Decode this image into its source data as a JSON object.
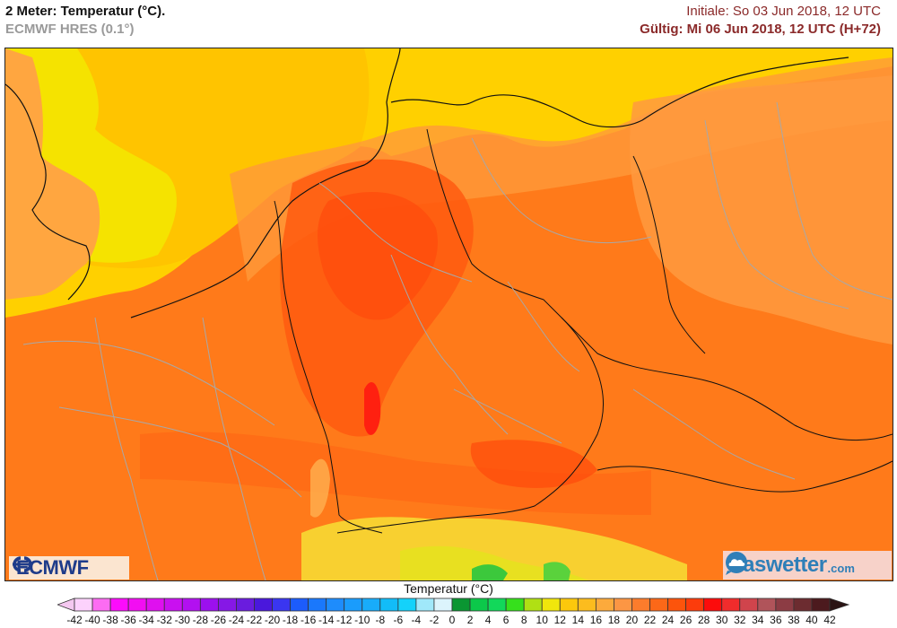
{
  "header": {
    "title": "2 Meter: Temperatur (°C).",
    "subtitle": "ECMWF HRES (0.1°)",
    "init_time": "Initiale: So 03 Jun 2018, 12 UTC",
    "valid_time": "Gültig: Mi 06 Jun 2018, 12 UTC (H+72)"
  },
  "map": {
    "region": "Central Europe",
    "variable": "2 m temperature",
    "colors": {
      "sea_north": "#f5e300",
      "sea_mid": "#ffd000",
      "coast": "#ffa640",
      "land_warm": "#ff7a1a",
      "land_hot": "#ff5a10",
      "land_hottest": "#ff3d0a",
      "alps_cool": "#e8e020",
      "alps_cold": "#3cc83c",
      "border_country": "#111111",
      "border_region": "#a0a0a0"
    }
  },
  "logos": {
    "left": {
      "icon": "ecmwf-logo-icon",
      "text": "ECMWF"
    },
    "right": {
      "icon": "cloud-speech-bubble-icon",
      "text": "daswetter",
      "suffix": ".com"
    }
  },
  "colorbar": {
    "title": "Temperatur (°C)",
    "labels": [
      "-42",
      "-40",
      "-38",
      "-36",
      "-34",
      "-32",
      "-30",
      "-28",
      "-26",
      "-24",
      "-22",
      "-20",
      "-18",
      "-16",
      "-14",
      "-12",
      "-10",
      "-8",
      "-6",
      "-4",
      "-2",
      "0",
      "2",
      "4",
      "6",
      "8",
      "10",
      "12",
      "14",
      "16",
      "18",
      "20",
      "22",
      "24",
      "26",
      "28",
      "30",
      "32",
      "34",
      "36",
      "38",
      "40",
      "42"
    ],
    "under_color": "#f4c8f0",
    "over_color": "#2a1414",
    "colors": [
      "#fcd2fc",
      "#fc6cf2",
      "#fc0cfc",
      "#f20ef2",
      "#df10ef",
      "#c910f0",
      "#b210f0",
      "#9c10ee",
      "#8618e6",
      "#6a1cde",
      "#4a18dc",
      "#3a36f0",
      "#1c5cfc",
      "#1a78fc",
      "#1e8cfc",
      "#1a9cfc",
      "#18acfa",
      "#12bcf8",
      "#14d2fa",
      "#a0e8fa",
      "#dcf4fc",
      "#0a9632",
      "#0cc84a",
      "#12d85a",
      "#36e01c",
      "#b0e014",
      "#f0e60c",
      "#fcc80c",
      "#fcbc1e",
      "#fcaa3c",
      "#fc9644",
      "#fc7c2c",
      "#fc6818",
      "#fc540c",
      "#fc3c0c",
      "#fc0c0c",
      "#f02c2c",
      "#d0444c",
      "#b0545a",
      "#8c3c44",
      "#6c2c30",
      "#4c1a1e"
    ]
  }
}
